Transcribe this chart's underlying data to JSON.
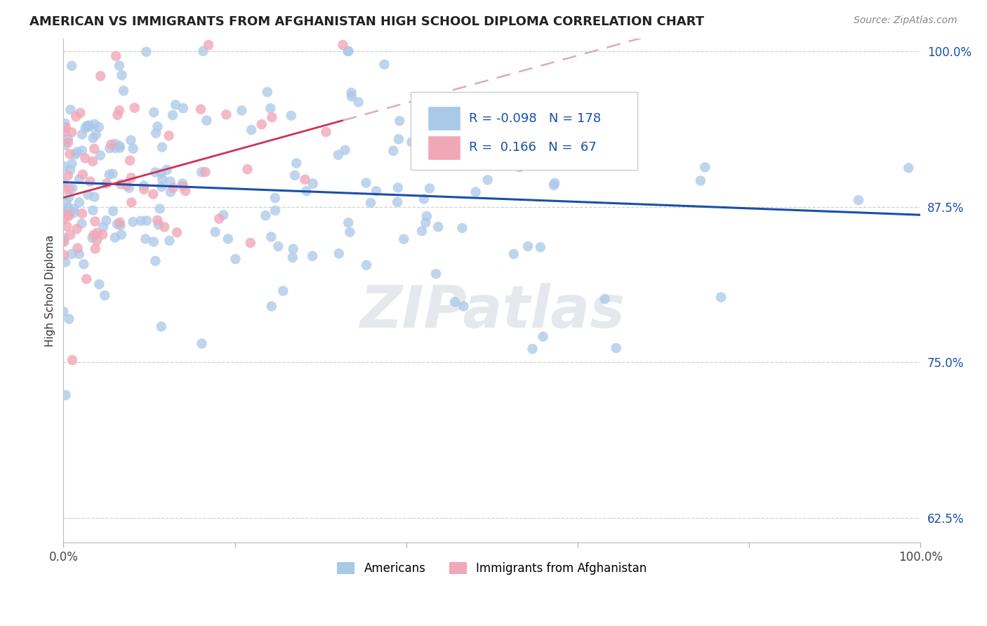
{
  "title": "AMERICAN VS IMMIGRANTS FROM AFGHANISTAN HIGH SCHOOL DIPLOMA CORRELATION CHART",
  "source": "Source: ZipAtlas.com",
  "ylabel": "High School Diploma",
  "legend_blue_R": "-0.098",
  "legend_blue_N": "178",
  "legend_pink_R": "0.166",
  "legend_pink_N": "67",
  "legend_blue_label": "Americans",
  "legend_pink_label": "Immigrants from Afghanistan",
  "blue_color": "#aac8e8",
  "pink_color": "#f0a8b8",
  "blue_line_color": "#1a4faa",
  "pink_line_color": "#cc3355",
  "pink_dash_color": "#ddaabb",
  "watermark": "ZIPatlas",
  "xlim": [
    0.0,
    1.0
  ],
  "ylim": [
    0.605,
    1.01
  ],
  "yticks": [
    0.625,
    0.75,
    0.875,
    1.0
  ],
  "ytick_labels": [
    "62.5%",
    "75.0%",
    "87.5%",
    "100.0%"
  ],
  "xtick_labels": [
    "0.0%",
    "100.0%"
  ],
  "xticks": [
    0.0,
    1.0
  ],
  "background_color": "#ffffff",
  "title_fontsize": 13
}
